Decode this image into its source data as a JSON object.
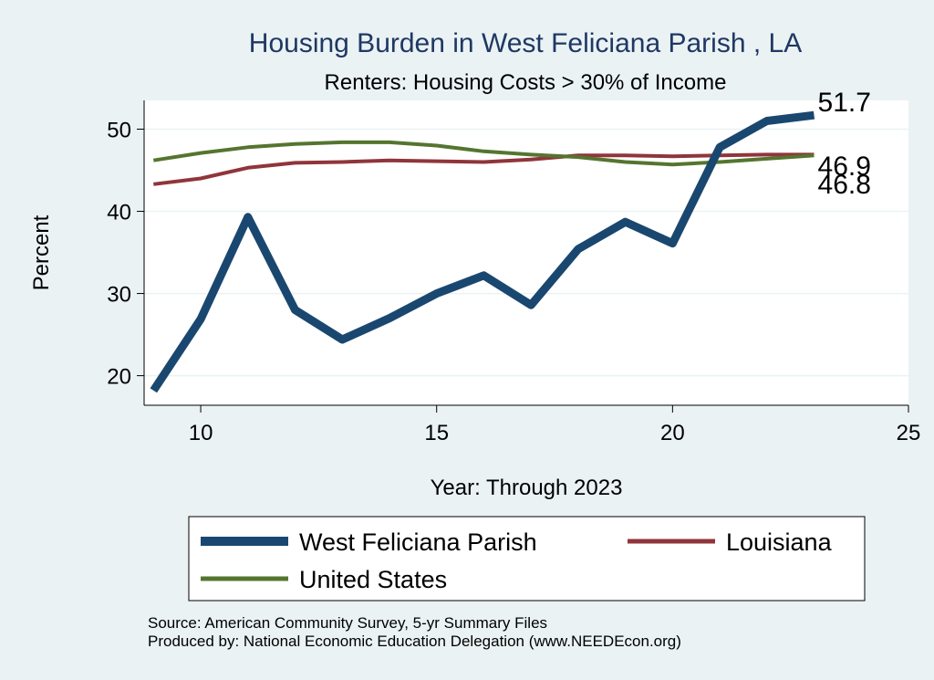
{
  "chart_data": {
    "type": "line",
    "title": "Housing Burden in West Feliciana Parish , LA",
    "subtitle": "Renters: Housing Costs > 30% of Income",
    "xlabel": "Year: Through 2023",
    "ylabel": "Percent",
    "xlim": [
      8.8,
      25
    ],
    "ylim": [
      16.4,
      53.5
    ],
    "xticks": [
      10,
      15,
      20,
      25
    ],
    "yticks": [
      20,
      30,
      40,
      50
    ],
    "grid": true,
    "legend_position": "bottom",
    "x": [
      9,
      10,
      11,
      12,
      13,
      14,
      15,
      16,
      17,
      18,
      19,
      20,
      21,
      22,
      23
    ],
    "series": [
      {
        "name": "West Feliciana Parish",
        "color": "#1a476f",
        "values": [
          18.2,
          26.9,
          39.3,
          28.0,
          24.4,
          27.0,
          30.0,
          32.2,
          28.6,
          35.4,
          38.7,
          36.1,
          47.8,
          51.0,
          51.7
        ],
        "end_label": "51.7"
      },
      {
        "name": "Louisiana",
        "color": "#90353b",
        "values": [
          43.3,
          44.0,
          45.3,
          45.9,
          46.0,
          46.2,
          46.1,
          46.0,
          46.3,
          46.8,
          46.8,
          46.7,
          46.8,
          46.9,
          46.9
        ],
        "end_label": "46.9"
      },
      {
        "name": "United States",
        "color": "#55752f",
        "values": [
          46.2,
          47.1,
          47.8,
          48.2,
          48.4,
          48.4,
          48.0,
          47.3,
          46.9,
          46.6,
          46.0,
          45.7,
          46.0,
          46.4,
          46.8
        ],
        "end_label": "46.8"
      }
    ]
  },
  "source_note": "Source: American Community Survey, 5-yr Summary Files",
  "produced_note": "Produced by: National Economic Education Delegation (www.NEEDEcon.org)"
}
